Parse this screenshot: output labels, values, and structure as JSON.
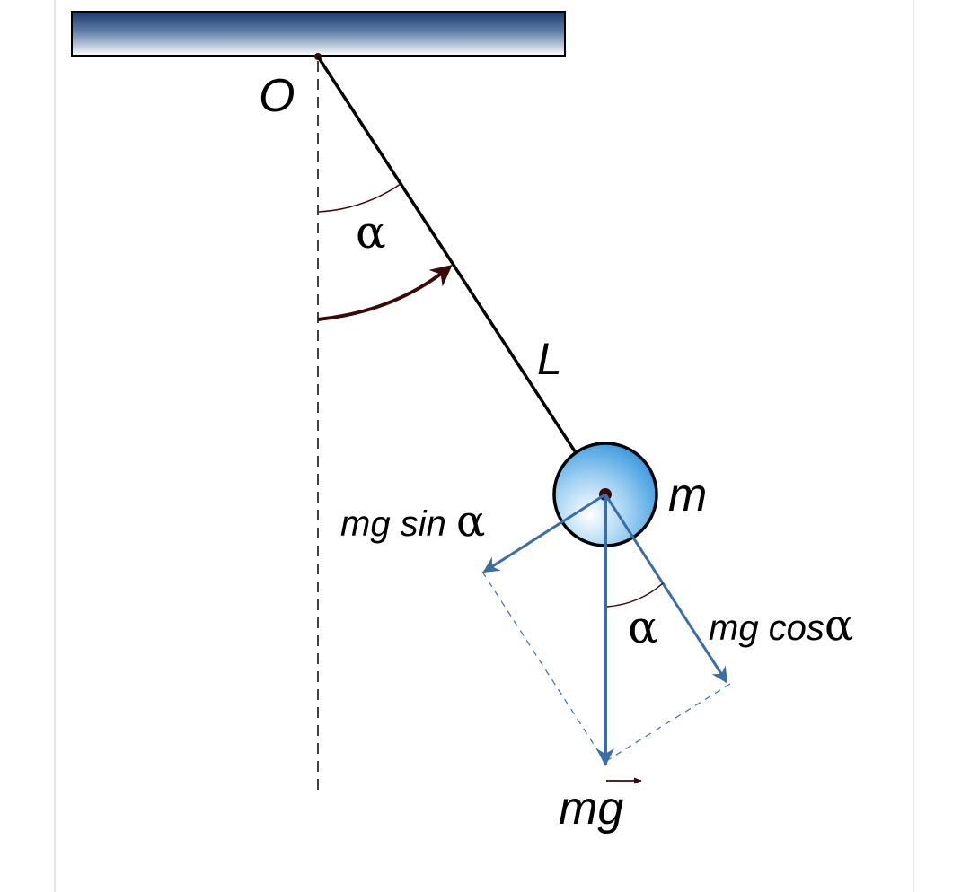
{
  "labels": {
    "pivot": "O",
    "length": "L",
    "mass": "m",
    "angle": "α",
    "force_angle": "α",
    "tangential_prefix": "mg sin ",
    "tangential_angle": "α",
    "radial_prefix": "mg cos",
    "radial_angle": "α",
    "weight": "mg"
  },
  "colors": {
    "ceiling_dark": "#1b3a6b",
    "ceiling_light": "#ffffff",
    "string": "#000000",
    "force_vectors": "#3c6ea6",
    "angle_arc": "#3a0a0a",
    "bob_light": "#ffffff",
    "bob_dark": "#1f8ad8",
    "frame_border": "#e6e6e6"
  },
  "icons": {
    "ceiling": "ceiling-bar",
    "bob": "pendulum-bob",
    "vector_arrow": "arrow-head",
    "vector_accent": "vector-overarrow"
  }
}
